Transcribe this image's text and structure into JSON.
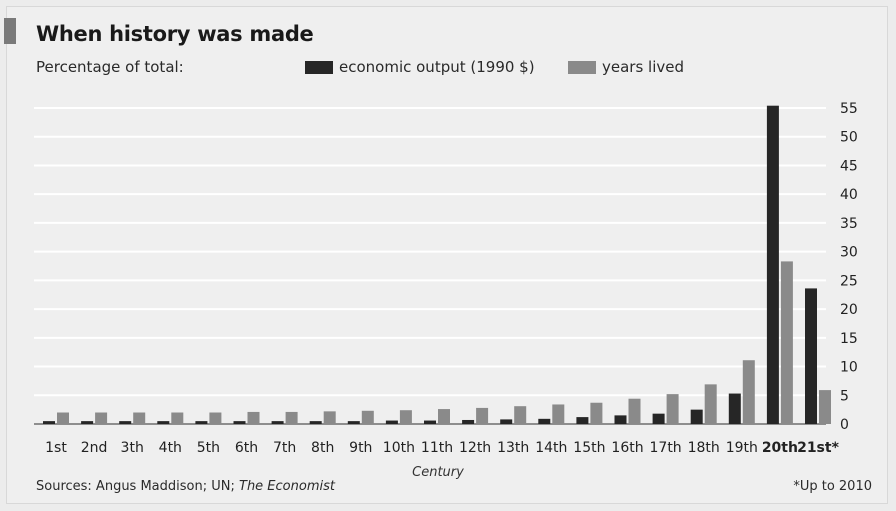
{
  "header": {
    "title": "When history was made",
    "subtitle": "Percentage of total:"
  },
  "footer": {
    "sources_prefix": "Sources: Angus Maddison; UN; ",
    "sources_italic": "The Economist",
    "note": "*Up to 2010"
  },
  "colors": {
    "economic_output": "#262626",
    "years_lived": "#8a8a8a",
    "grid": "#ffffff"
  },
  "chart_data": {
    "type": "bar",
    "title": "When history was made",
    "subtitle": "Percentage of total:",
    "xlabel": "Century",
    "ylabel": "",
    "ylim": [
      0,
      55
    ],
    "yticks": [
      0,
      5,
      10,
      15,
      20,
      25,
      30,
      35,
      40,
      45,
      50,
      55
    ],
    "grid": true,
    "legend_position": "top",
    "categories": [
      "1st",
      "2nd",
      "3th",
      "4th",
      "5th",
      "6th",
      "7th",
      "8th",
      "9th",
      "10th",
      "11th",
      "12th",
      "13th",
      "14th",
      "15th",
      "16th",
      "17th",
      "18th",
      "19th",
      "20th",
      "21st*"
    ],
    "bold_categories": [
      "20th",
      "21st*"
    ],
    "series": [
      {
        "name": "economic output (1990 $)",
        "values": [
          0.5,
          0.5,
          0.5,
          0.5,
          0.5,
          0.5,
          0.5,
          0.5,
          0.5,
          0.6,
          0.6,
          0.7,
          0.8,
          0.9,
          1.2,
          1.5,
          1.8,
          2.5,
          5.3,
          55.4,
          23.6
        ]
      },
      {
        "name": "years lived",
        "values": [
          2.0,
          2.0,
          2.0,
          2.0,
          2.0,
          2.1,
          2.1,
          2.2,
          2.3,
          2.4,
          2.6,
          2.8,
          3.1,
          3.4,
          3.7,
          4.4,
          5.2,
          6.9,
          11.1,
          28.3,
          5.9
        ]
      }
    ]
  }
}
